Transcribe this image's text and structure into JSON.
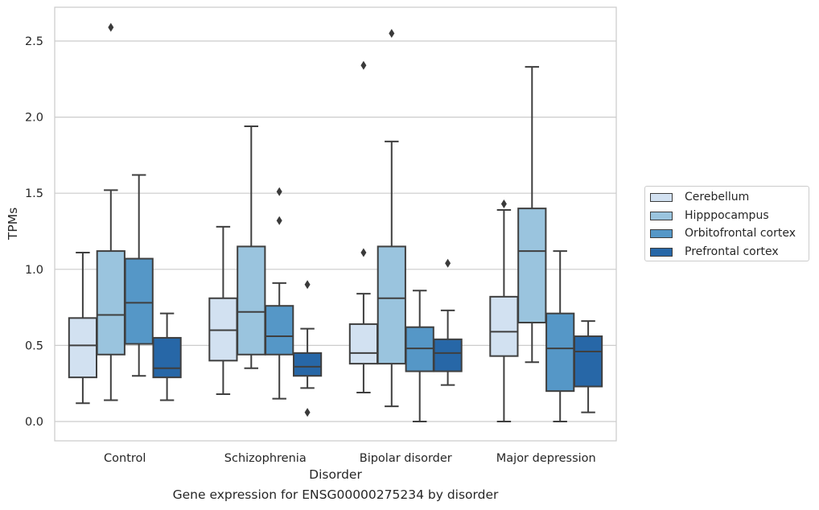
{
  "chart_data": {
    "type": "boxplot",
    "title": "Gene expression for ENSG00000275234 by disorder",
    "xlabel": "Disorder",
    "ylabel": "TPMs",
    "ylim": [
      -0.12,
      2.72
    ],
    "yticks": [
      0.0,
      0.5,
      1.0,
      1.5,
      2.0,
      2.5
    ],
    "ytick_labels": [
      "0.0",
      "0.5",
      "1.0",
      "1.5",
      "2.0",
      "2.5"
    ],
    "grid": "horizontal",
    "legend_position": "right",
    "categories": [
      "Control",
      "Schizophrenia",
      "Bipolar disorder",
      "Major depression"
    ],
    "series": [
      {
        "name": "Cerebellum",
        "color": "#d2e1f1",
        "boxes": [
          {
            "whislo": 0.12,
            "q1": 0.29,
            "med": 0.5,
            "q3": 0.68,
            "whishi": 1.11,
            "fliers": []
          },
          {
            "whislo": 0.18,
            "q1": 0.4,
            "med": 0.6,
            "q3": 0.81,
            "whishi": 1.28,
            "fliers": []
          },
          {
            "whislo": 0.19,
            "q1": 0.38,
            "med": 0.45,
            "q3": 0.64,
            "whishi": 0.84,
            "fliers": [
              1.11,
              2.34
            ]
          },
          {
            "whislo": 0.0,
            "q1": 0.43,
            "med": 0.59,
            "q3": 0.82,
            "whishi": 1.39,
            "fliers": [
              1.43
            ]
          }
        ]
      },
      {
        "name": "Hipppocampus",
        "color": "#9ac4de",
        "boxes": [
          {
            "whislo": 0.14,
            "q1": 0.44,
            "med": 0.7,
            "q3": 1.12,
            "whishi": 1.52,
            "fliers": [
              2.59
            ]
          },
          {
            "whislo": 0.35,
            "q1": 0.44,
            "med": 0.72,
            "q3": 1.15,
            "whishi": 1.94,
            "fliers": []
          },
          {
            "whislo": 0.1,
            "q1": 0.38,
            "med": 0.81,
            "q3": 1.15,
            "whishi": 1.84,
            "fliers": [
              2.55
            ]
          },
          {
            "whislo": 0.39,
            "q1": 0.65,
            "med": 1.12,
            "q3": 1.4,
            "whishi": 2.33,
            "fliers": []
          }
        ]
      },
      {
        "name": "Orbitofrontal cortex",
        "color": "#5597c7",
        "boxes": [
          {
            "whislo": 0.3,
            "q1": 0.51,
            "med": 0.78,
            "q3": 1.07,
            "whishi": 1.62,
            "fliers": []
          },
          {
            "whislo": 0.15,
            "q1": 0.44,
            "med": 0.56,
            "q3": 0.76,
            "whishi": 0.91,
            "fliers": [
              1.32,
              1.51
            ]
          },
          {
            "whislo": 0.0,
            "q1": 0.33,
            "med": 0.48,
            "q3": 0.62,
            "whishi": 0.86,
            "fliers": []
          },
          {
            "whislo": 0.0,
            "q1": 0.2,
            "med": 0.48,
            "q3": 0.71,
            "whishi": 1.12,
            "fliers": []
          }
        ]
      },
      {
        "name": "Prefrontal cortex",
        "color": "#2767a7",
        "boxes": [
          {
            "whislo": 0.14,
            "q1": 0.29,
            "med": 0.35,
            "q3": 0.55,
            "whishi": 0.71,
            "fliers": []
          },
          {
            "whislo": 0.22,
            "q1": 0.3,
            "med": 0.36,
            "q3": 0.45,
            "whishi": 0.61,
            "fliers": [
              0.9,
              0.06
            ]
          },
          {
            "whislo": 0.24,
            "q1": 0.33,
            "med": 0.45,
            "q3": 0.54,
            "whishi": 0.73,
            "fliers": [
              1.04
            ]
          },
          {
            "whislo": 0.06,
            "q1": 0.23,
            "med": 0.46,
            "q3": 0.56,
            "whishi": 0.66,
            "fliers": []
          }
        ]
      }
    ]
  }
}
